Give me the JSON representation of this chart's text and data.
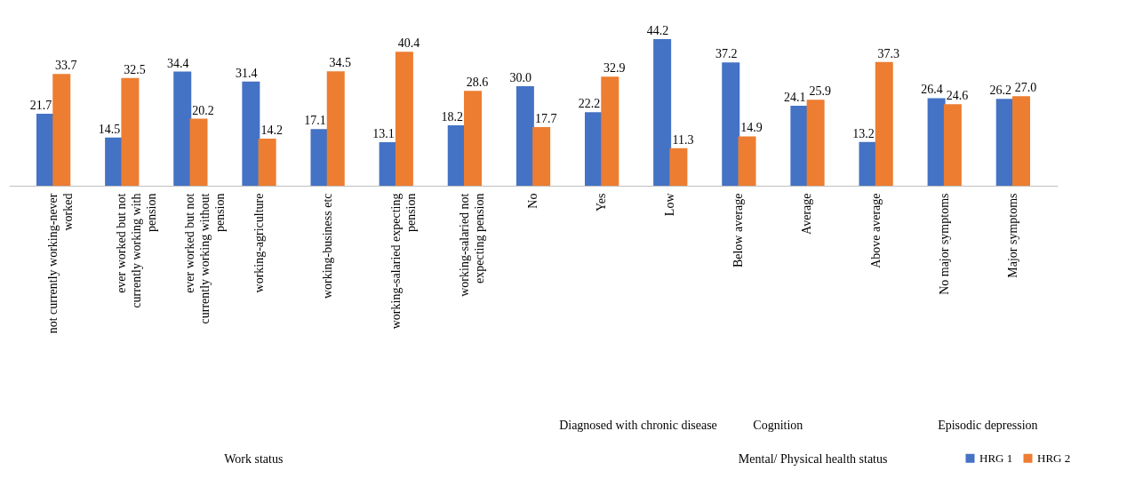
{
  "chart_data": {
    "type": "bar",
    "categories": [
      "not currently working-never worked",
      "ever worked but not currently working with pension",
      "ever worked but not currently working without pension",
      "working-agriculture",
      "working-business etc",
      "working-salaried expecting pension",
      "working-salaried not expecting pension",
      "No",
      "Yes",
      "Low",
      "Below average",
      "Average",
      "Above average",
      "No major symptoms",
      "Major symptoms"
    ],
    "series": [
      {
        "name": "HRG 1",
        "color": "#4472c4",
        "values": [
          21.7,
          14.5,
          34.4,
          31.4,
          17.1,
          13.1,
          18.2,
          30.0,
          22.2,
          44.2,
          37.2,
          24.1,
          13.2,
          26.4,
          26.2
        ],
        "value_labels": [
          "21.7",
          "14.5",
          "34.4",
          "31.4",
          "17.1",
          "13.1",
          "18.2",
          "30.0",
          "22.2",
          "44.2",
          "37.2",
          "24.1",
          "13.2",
          "26.4",
          "26.2"
        ]
      },
      {
        "name": "HRG 2",
        "color": "#ed7d31",
        "values": [
          33.7,
          32.5,
          20.2,
          14.2,
          34.5,
          40.4,
          28.6,
          17.7,
          32.9,
          11.3,
          14.9,
          25.9,
          37.3,
          24.6,
          27.0
        ],
        "value_labels": [
          "33.7",
          "32.5",
          "20.2",
          "14.2",
          "34.5",
          "40.4",
          "28.6",
          "17.7",
          "32.9",
          "11.3",
          "14.9",
          "25.9",
          "37.3",
          "24.6",
          "27.0"
        ]
      }
    ],
    "legend": "bottom right",
    "annotations": [
      "Diagnosed with chronic disease",
      "Cognition",
      "Episodic depression",
      "Work status",
      "Mental/ Physical health status"
    ]
  }
}
